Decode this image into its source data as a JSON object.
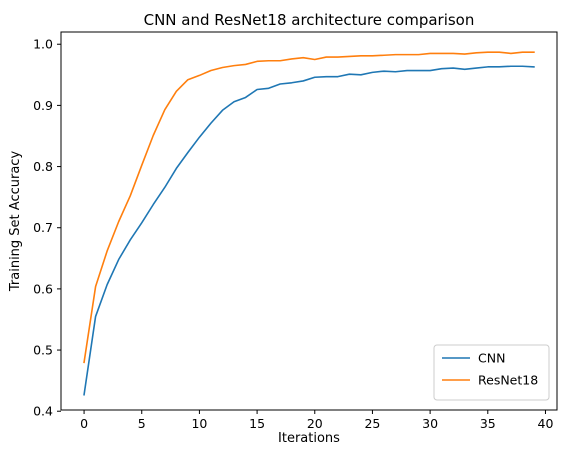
{
  "chart_data": {
    "type": "line",
    "title": "CNN and ResNet18 architecture comparison",
    "xlabel": "Iterations",
    "ylabel": "Training Set Accuracy",
    "xlim": [
      -2,
      41
    ],
    "ylim": [
      0.402,
      1.02
    ],
    "xticks": [
      0,
      5,
      10,
      15,
      20,
      25,
      30,
      35,
      40
    ],
    "yticks": [
      0.4,
      0.5,
      0.6,
      0.7,
      0.8,
      0.9,
      1.0
    ],
    "ytick_labels": [
      "0.4",
      "0.5",
      "0.6",
      "0.7",
      "0.8",
      "0.9",
      "1.0"
    ],
    "grid": false,
    "legend_position": "lower-right",
    "x": [
      0,
      1,
      2,
      3,
      4,
      5,
      6,
      7,
      8,
      9,
      10,
      11,
      12,
      13,
      14,
      15,
      16,
      17,
      18,
      19,
      20,
      21,
      22,
      23,
      24,
      25,
      26,
      27,
      28,
      29,
      30,
      31,
      32,
      33,
      34,
      35,
      36,
      37,
      38,
      39
    ],
    "series": [
      {
        "name": "CNN",
        "color": "#1f77b4",
        "values": [
          0.427,
          0.555,
          0.607,
          0.648,
          0.68,
          0.708,
          0.738,
          0.766,
          0.797,
          0.823,
          0.848,
          0.871,
          0.892,
          0.906,
          0.913,
          0.926,
          0.928,
          0.935,
          0.937,
          0.94,
          0.946,
          0.947,
          0.947,
          0.951,
          0.95,
          0.954,
          0.956,
          0.955,
          0.957,
          0.957,
          0.957,
          0.96,
          0.961,
          0.959,
          0.961,
          0.963,
          0.963,
          0.964,
          0.964,
          0.963
        ]
      },
      {
        "name": "ResNet18",
        "color": "#ff7f0e",
        "values": [
          0.48,
          0.604,
          0.662,
          0.71,
          0.752,
          0.802,
          0.851,
          0.893,
          0.923,
          0.942,
          0.949,
          0.957,
          0.962,
          0.965,
          0.967,
          0.972,
          0.973,
          0.973,
          0.976,
          0.978,
          0.975,
          0.979,
          0.979,
          0.98,
          0.981,
          0.981,
          0.982,
          0.983,
          0.983,
          0.983,
          0.985,
          0.985,
          0.985,
          0.984,
          0.986,
          0.987,
          0.987,
          0.985,
          0.987,
          0.987
        ]
      }
    ]
  }
}
